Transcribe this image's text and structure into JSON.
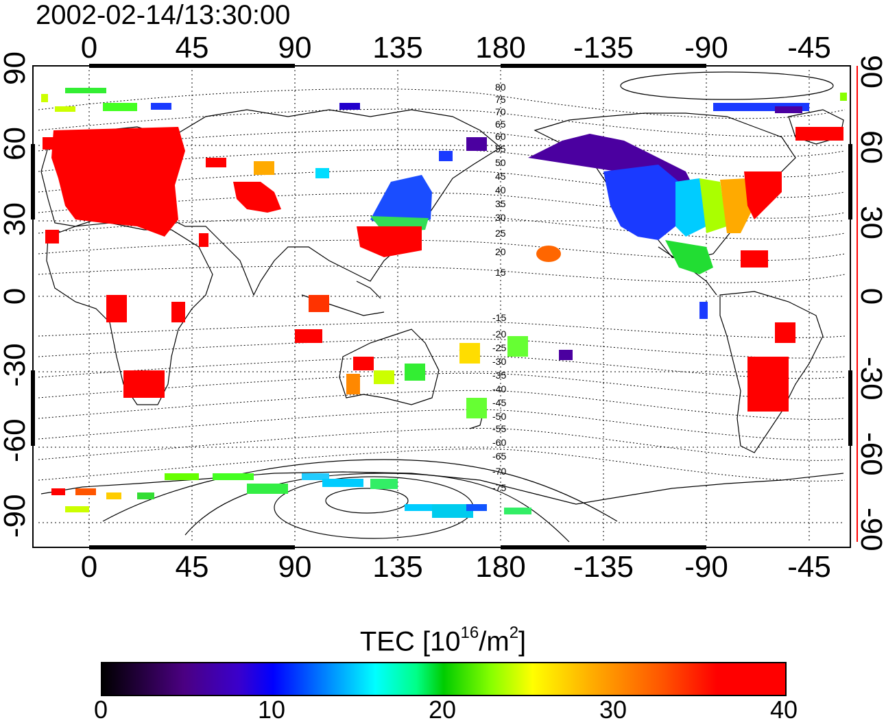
{
  "timestamp": "2002-02-14/13:30:00",
  "top_ticks": [
    "0",
    "45",
    "90",
    "135",
    "180",
    "-135",
    "-90",
    "-45"
  ],
  "bottom_ticks": [
    "0",
    "45",
    "90",
    "135",
    "180",
    "-135",
    "-90",
    "-45"
  ],
  "left_ticks": [
    "90",
    "60",
    "30",
    "0",
    "-30",
    "-60",
    "-90"
  ],
  "right_ticks": [
    "90",
    "60",
    "30",
    "0",
    "-30",
    "-60",
    "-90"
  ],
  "contour_labels": [
    "80",
    "75",
    "70",
    "65",
    "60",
    "55",
    "50",
    "45",
    "40",
    "35",
    "30",
    "25",
    "20",
    "15",
    "-15",
    "-20",
    "-25",
    "-30",
    "-35",
    "-40",
    "-45",
    "-50",
    "-55",
    "-60",
    "-65",
    "-70",
    "-75"
  ],
  "colorbar": {
    "title_main": "TEC  [10",
    "title_sup1": "16",
    "title_mid": "/m",
    "title_sup2": "2",
    "title_end": "]",
    "ticks": [
      "0",
      "10",
      "20",
      "30",
      "40"
    ]
  },
  "colors": {
    "high": "#ff0000",
    "mid": "#00dd00",
    "low": "#0000ff",
    "background": "#ffffff"
  }
}
